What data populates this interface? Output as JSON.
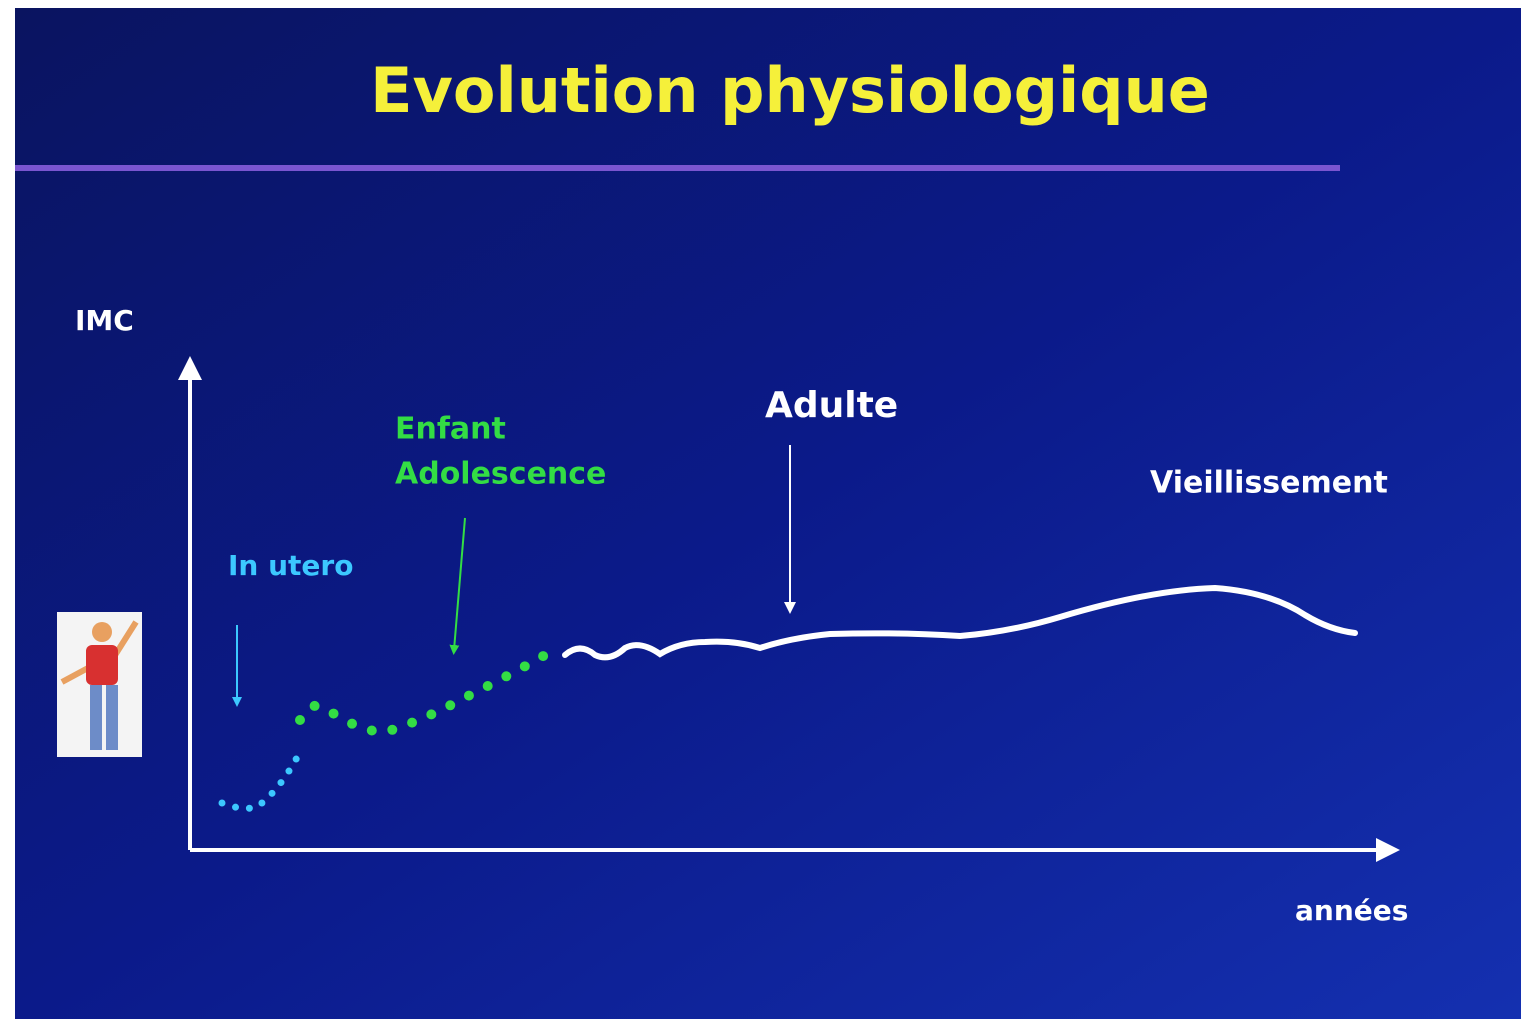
{
  "title": "Evolution physiologique",
  "axes": {
    "y_label": "IMC",
    "x_label": "années"
  },
  "phases": [
    {
      "label": "In utero"
    },
    {
      "label": "Enfant"
    },
    {
      "label": "Adolescence"
    },
    {
      "label": "Adulte"
    },
    {
      "label": "Vieillissement"
    }
  ]
}
